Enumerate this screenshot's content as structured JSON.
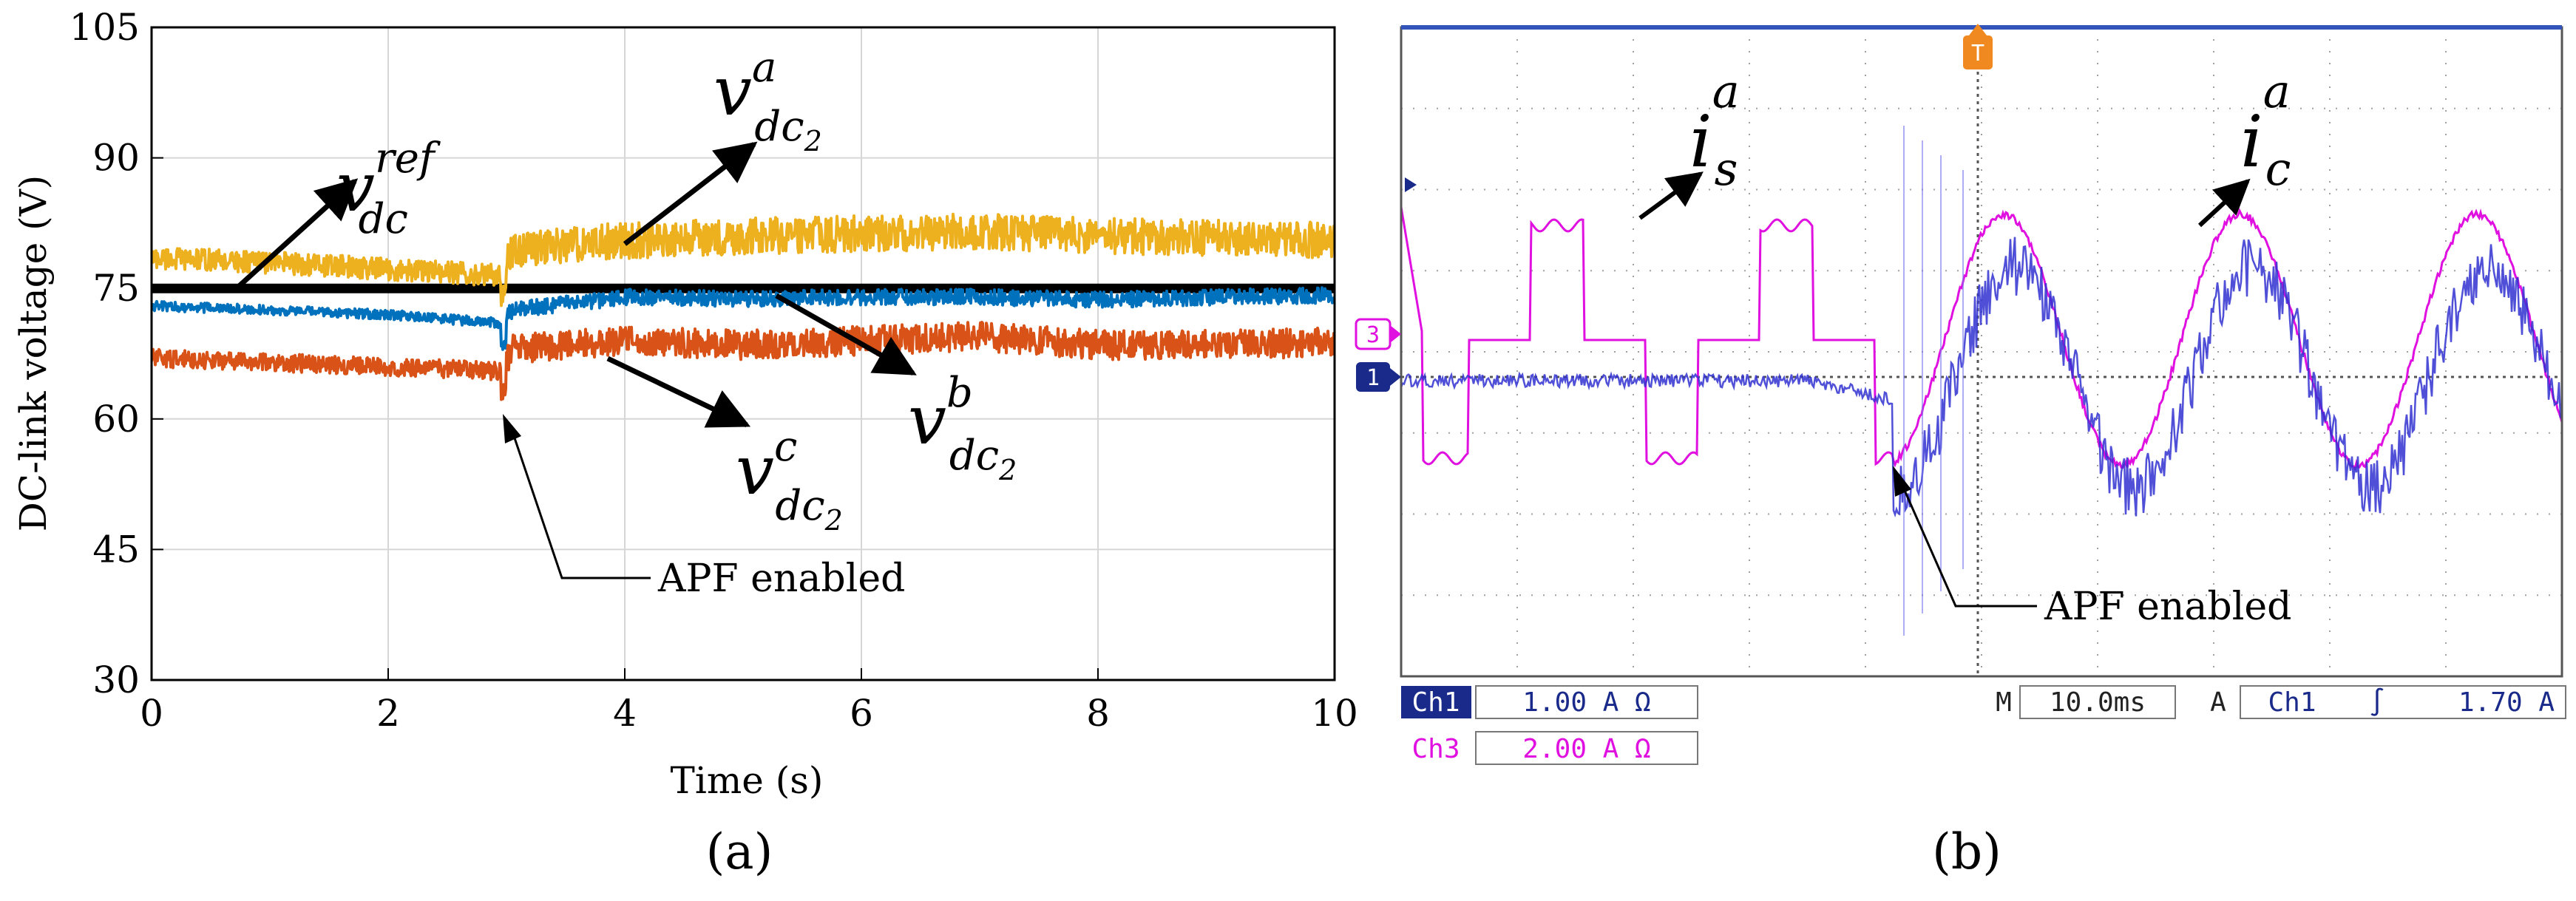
{
  "chart_data": [
    {
      "type": "line",
      "panel_label": "(a)",
      "title": "",
      "xlabel": "Time (s)",
      "ylabel": "DC-link voltage (V)",
      "xlim": [
        0,
        10
      ],
      "ylim": [
        30,
        105
      ],
      "xticks": [
        0,
        2,
        4,
        6,
        8,
        10
      ],
      "yticks": [
        30,
        45,
        60,
        75,
        90,
        105
      ],
      "grid": true,
      "series": [
        {
          "name": "v_dc^ref",
          "color": "#000000",
          "x": [
            0,
            10
          ],
          "y": [
            75,
            75
          ]
        },
        {
          "name": "v_dc2^a",
          "color": "#EDB120",
          "x": [
            0,
            1,
            2,
            2.95,
            3.05,
            4,
            5,
            6,
            7,
            8,
            9,
            10
          ],
          "y": [
            78.5,
            78,
            77.2,
            76.5,
            79.5,
            80.5,
            81,
            81.3,
            81.5,
            81,
            80.8,
            80.5
          ]
        },
        {
          "name": "v_dc2^b",
          "color": "#0072BD",
          "x": [
            0,
            1,
            2,
            2.95,
            3.05,
            4,
            5,
            6,
            7,
            8,
            9,
            10
          ],
          "y": [
            73,
            72.5,
            72,
            71,
            72.5,
            74,
            73.8,
            74,
            74,
            73.7,
            74,
            74.2
          ]
        },
        {
          "name": "v_dc2^c",
          "color": "#D95319",
          "x": [
            0,
            1,
            2,
            2.95,
            3.05,
            4,
            5,
            6,
            7,
            8,
            9,
            10
          ],
          "y": [
            67,
            66.5,
            66,
            65.5,
            68,
            69,
            68.5,
            69,
            69.5,
            68.5,
            68.5,
            68.8
          ]
        }
      ],
      "annotations": {
        "ref_symbol": "v",
        "ref_sub": "dc",
        "ref_sup": "ref",
        "a_symbol": "v",
        "a_sub": "dc",
        "a_subsub": "2",
        "a_sup": "a",
        "b_symbol": "v",
        "b_sub": "dc",
        "b_subsub": "2",
        "b_sup": "b",
        "c_symbol": "v",
        "c_sub": "dc",
        "c_subsub": "2",
        "c_sup": "c",
        "event": "APF enabled"
      }
    },
    {
      "type": "line",
      "panel_label": "(b)",
      "title": "",
      "xlabel": "",
      "ylabel": "",
      "grid": true,
      "series": [
        {
          "name": "i_s^a",
          "channel": "3",
          "color": "#E010E0",
          "description": "quasi-square source current before APF, sinusoidal after"
        },
        {
          "name": "i_c^a",
          "channel": "1",
          "color": "#3030D0",
          "description": "compensation current, ~0 before APF enabled"
        }
      ],
      "annotations": {
        "is_symbol": "i",
        "is_sub": "s",
        "is_sup": "a",
        "ic_symbol": "i",
        "ic_sub": "c",
        "ic_sup": "a",
        "event": "APF enabled"
      },
      "scope": {
        "trigger_marker": "T",
        "ch1_marker": "1",
        "ch3_marker": "3",
        "ch1_label": "Ch1",
        "ch1_scale": "1.00 A Ω",
        "ch3_label": "Ch3",
        "ch3_scale": "2.00 A Ω",
        "timebase_prefix": "M",
        "timebase": "10.0ms",
        "trigger_mode": "A",
        "trigger_channel": "Ch1",
        "trigger_slope": "∫",
        "trigger_level": "1.70 A"
      }
    }
  ]
}
